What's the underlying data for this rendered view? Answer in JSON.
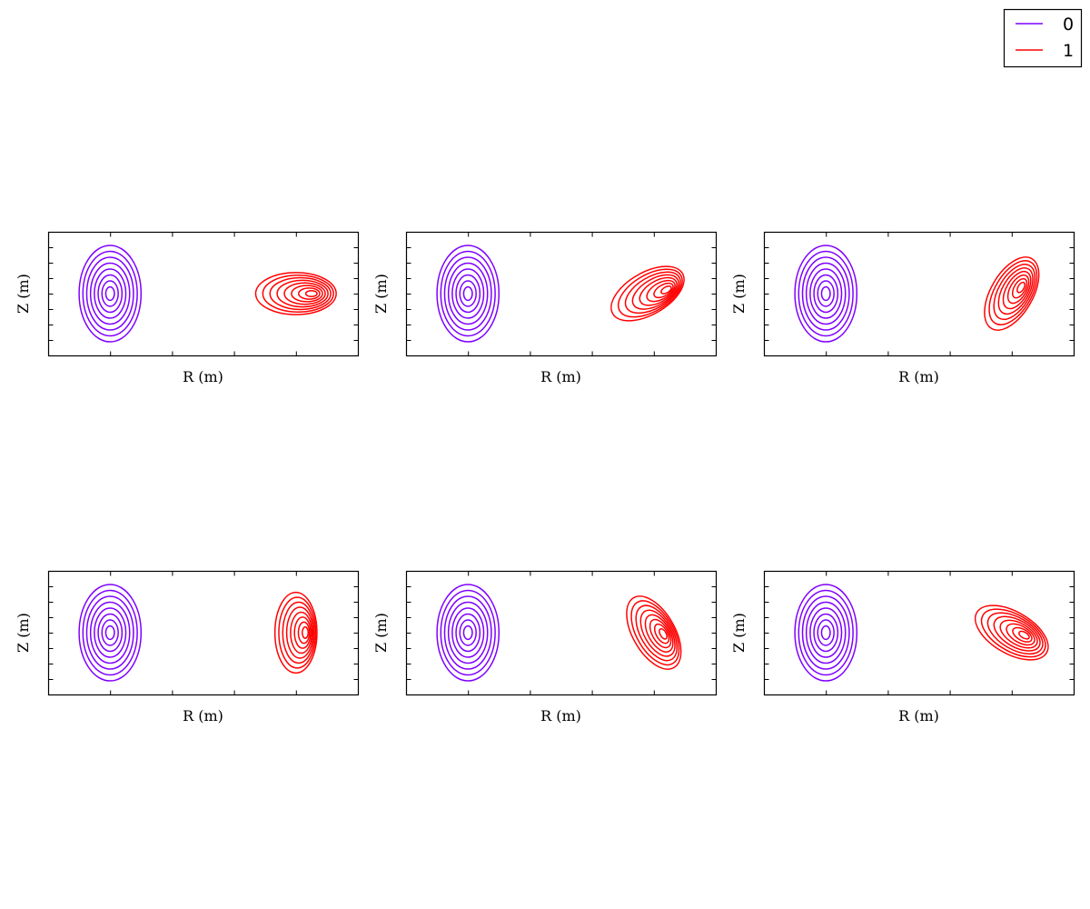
{
  "colors": {
    "series0": "#7f00ff",
    "series1": "#ff0000",
    "axes": "#000000",
    "background": "#ffffff"
  },
  "legend": {
    "placement": "top-right",
    "entries": [
      {
        "label": "0",
        "color": "#7f00ff"
      },
      {
        "label": "1",
        "color": "#ff0000"
      }
    ]
  },
  "chart_data": [
    {
      "type": "contour",
      "xlabel": "R (m)",
      "ylabel": "Z (m)",
      "grid": false,
      "x_tick_labels": false,
      "y_tick_labels": false,
      "series": [
        {
          "name": "0",
          "levels": 8,
          "center_frac": [
            0.2,
            0.5
          ],
          "outer_semi_axes_frac": [
            0.1,
            0.39
          ],
          "tilt_deg": 0
        },
        {
          "name": "1",
          "levels": 8,
          "center_frac": [
            0.8,
            0.5
          ],
          "outer_semi_axes_frac": [
            0.13,
            0.17
          ],
          "tilt_deg": 0,
          "inner_center_frac": [
            0.85,
            0.5
          ]
        }
      ]
    },
    {
      "type": "contour",
      "xlabel": "R (m)",
      "ylabel": "Z (m)",
      "grid": false,
      "x_tick_labels": false,
      "y_tick_labels": false,
      "series": [
        {
          "name": "0",
          "levels": 8,
          "center_frac": [
            0.2,
            0.5
          ],
          "outer_semi_axes_frac": [
            0.1,
            0.39
          ],
          "tilt_deg": 0
        },
        {
          "name": "1",
          "levels": 8,
          "center_frac": [
            0.78,
            0.5
          ],
          "outer_semi_axes_frac": [
            0.13,
            0.17
          ],
          "tilt_deg": -30,
          "inner_center_frac": [
            0.84,
            0.47
          ]
        }
      ]
    },
    {
      "type": "contour",
      "xlabel": "R (m)",
      "ylabel": "Z (m)",
      "grid": false,
      "x_tick_labels": false,
      "y_tick_labels": false,
      "series": [
        {
          "name": "0",
          "levels": 8,
          "center_frac": [
            0.2,
            0.5
          ],
          "outer_semi_axes_frac": [
            0.1,
            0.39
          ],
          "tilt_deg": 0
        },
        {
          "name": "1",
          "levels": 8,
          "center_frac": [
            0.8,
            0.5
          ],
          "outer_semi_axes_frac": [
            0.13,
            0.17
          ],
          "tilt_deg": -60,
          "inner_center_frac": [
            0.83,
            0.45
          ]
        }
      ]
    },
    {
      "type": "contour",
      "xlabel": "R (m)",
      "ylabel": "Z (m)",
      "grid": false,
      "x_tick_labels": false,
      "y_tick_labels": false,
      "series": [
        {
          "name": "0",
          "levels": 8,
          "center_frac": [
            0.2,
            0.5
          ],
          "outer_semi_axes_frac": [
            0.1,
            0.39
          ],
          "tilt_deg": 0
        },
        {
          "name": "1",
          "levels": 8,
          "center_frac": [
            0.8,
            0.5
          ],
          "outer_semi_axes_frac": [
            0.13,
            0.17
          ],
          "tilt_deg": 90,
          "inner_center_frac": [
            0.83,
            0.5
          ]
        }
      ]
    },
    {
      "type": "contour",
      "xlabel": "R (m)",
      "ylabel": "Z (m)",
      "grid": false,
      "x_tick_labels": false,
      "y_tick_labels": false,
      "series": [
        {
          "name": "0",
          "levels": 8,
          "center_frac": [
            0.2,
            0.5
          ],
          "outer_semi_axes_frac": [
            0.1,
            0.39
          ],
          "tilt_deg": 0
        },
        {
          "name": "1",
          "levels": 8,
          "center_frac": [
            0.8,
            0.5
          ],
          "outer_semi_axes_frac": [
            0.13,
            0.17
          ],
          "tilt_deg": 60,
          "inner_center_frac": [
            0.83,
            0.51
          ]
        }
      ]
    },
    {
      "type": "contour",
      "xlabel": "R (m)",
      "ylabel": "Z (m)",
      "grid": false,
      "x_tick_labels": false,
      "y_tick_labels": false,
      "series": [
        {
          "name": "0",
          "levels": 8,
          "center_frac": [
            0.2,
            0.5
          ],
          "outer_semi_axes_frac": [
            0.1,
            0.39
          ],
          "tilt_deg": 0
        },
        {
          "name": "1",
          "levels": 8,
          "center_frac": [
            0.8,
            0.5
          ],
          "outer_semi_axes_frac": [
            0.13,
            0.17
          ],
          "tilt_deg": 30,
          "inner_center_frac": [
            0.84,
            0.52
          ]
        }
      ]
    }
  ]
}
